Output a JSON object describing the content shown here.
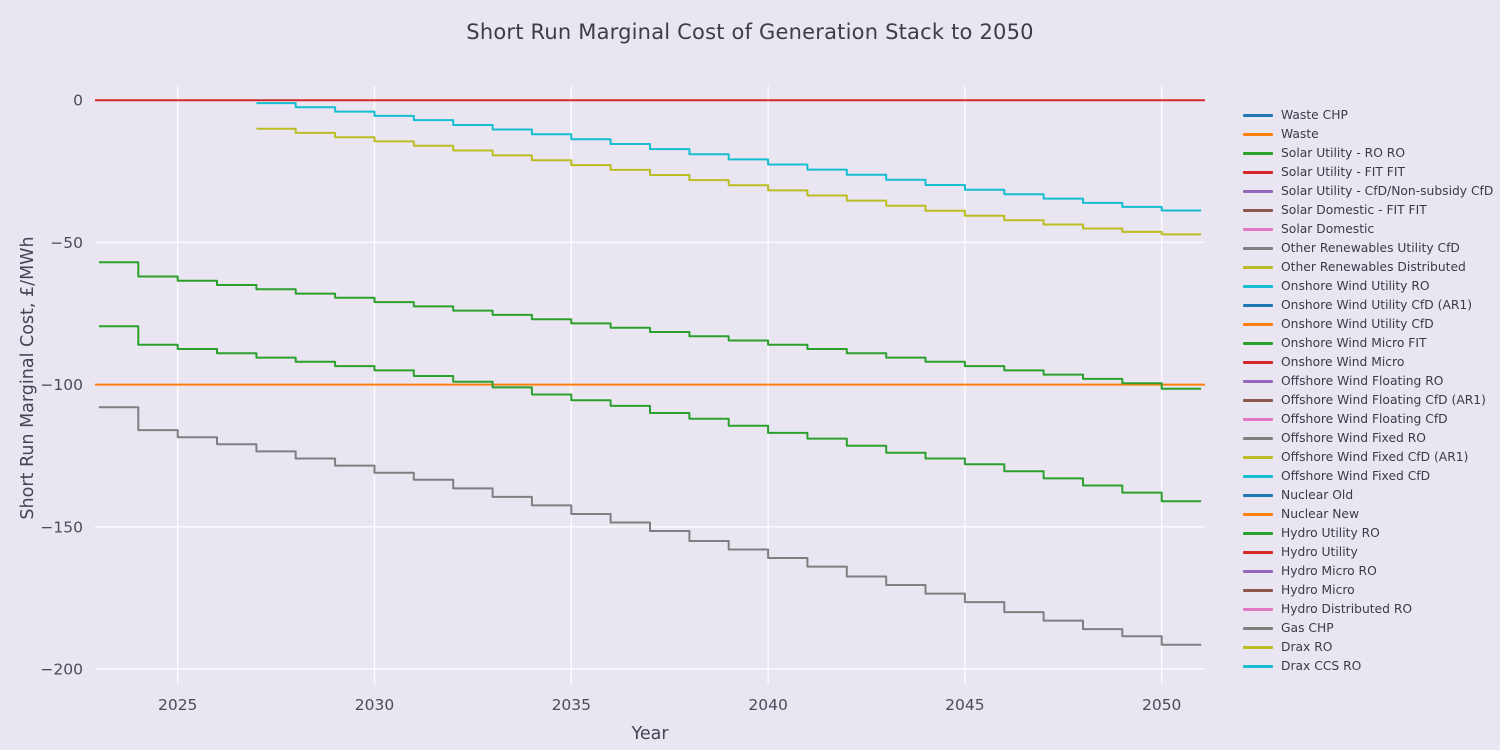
{
  "chart_data": {
    "type": "line",
    "title": "Short Run Marginal Cost of Generation Stack to 2050",
    "xlabel": "Year",
    "ylabel": "Short Run Marginal Cost, £/MWh",
    "xlim": [
      2022.9,
      2051.1
    ],
    "ylim": [
      -205.3,
      5
    ],
    "xticks": [
      2025,
      2030,
      2035,
      2040,
      2045,
      2050
    ],
    "yticks": [
      0,
      -50,
      -100,
      -150,
      -200
    ],
    "grid": true,
    "grid_color": "rgba(255,255,255,0.9)",
    "background": "#e9e6f2",
    "legend_position": "right",
    "series": [
      {
        "name": "Nuclear New",
        "color": "#ff7f0e",
        "shape": "linear",
        "x": [
          2022.9,
          2051.1
        ],
        "values": [
          -100,
          -100
        ]
      },
      {
        "name": "Hydro Utility",
        "color": "#d62728",
        "shape": "linear",
        "x": [
          2022.9,
          2051.1
        ],
        "values": [
          0,
          0
        ]
      },
      {
        "name": "Offshore Wind Fixed RO",
        "color": "#7f7f7f",
        "shape": "step",
        "x_start": 2023,
        "values": [
          -108,
          -116,
          -118.5,
          -121,
          -123.5,
          -126,
          -128.5,
          -131,
          -133.5,
          -136.5,
          -139.5,
          -142.5,
          -145.5,
          -148.5,
          -151.5,
          -155,
          -158,
          -161,
          -164,
          -167.5,
          -170.5,
          -173.5,
          -176.5,
          -180,
          -183,
          -186,
          -188.5,
          -191.5,
          -191.5
        ]
      },
      {
        "name": "Solar Utility - RO RO",
        "color": "#2ca02c",
        "shape": "step",
        "x_start": 2023,
        "values": [
          -57,
          -62,
          -63.5,
          -65,
          -66.5,
          -68,
          -69.5,
          -71,
          -72.5,
          -74,
          -75.5,
          -77,
          -78.5,
          -80,
          -81.5,
          -83,
          -84.5,
          -86,
          -87.5,
          -89,
          -90.5,
          -92,
          -93.5,
          -95,
          -96.5,
          -98,
          -99.5,
          -101.5,
          -101.5
        ]
      },
      {
        "name": "Hydro Utility RO",
        "color": "#2ca02c",
        "shape": "step",
        "x_start": 2023,
        "values": [
          -79.5,
          -86,
          -87.5,
          -89,
          -90.5,
          -92,
          -93.5,
          -95,
          -97,
          -99,
          -101,
          -103.5,
          -105.5,
          -107.5,
          -110,
          -112,
          -114.5,
          -117,
          -119,
          -121.5,
          -124,
          -126,
          -128,
          -130.5,
          -133,
          -135.5,
          -138,
          -141,
          -141
        ]
      },
      {
        "name": "Drax RO",
        "color": "#bcbd22",
        "shape": "step",
        "x_start": 2027,
        "values": [
          -10,
          -11.5,
          -13,
          -14.5,
          -16,
          -17.7,
          -19.4,
          -21.1,
          -22.8,
          -24.5,
          -26.3,
          -28.1,
          -29.9,
          -31.7,
          -33.5,
          -35.3,
          -37.1,
          -38.9,
          -40.6,
          -42.2,
          -43.7,
          -45.1,
          -46.3,
          -47.2,
          -47.2
        ]
      },
      {
        "name": "Drax CCS RO",
        "color": "#17becf",
        "shape": "step",
        "x_start": 2027,
        "values": [
          -1,
          -2.5,
          -4,
          -5.5,
          -7,
          -8.7,
          -10.3,
          -12,
          -13.7,
          -15.4,
          -17.2,
          -19,
          -20.8,
          -22.6,
          -24.4,
          -26.2,
          -28,
          -29.8,
          -31.5,
          -33.1,
          -34.6,
          -36.1,
          -37.5,
          -38.8,
          -38.8
        ]
      }
    ],
    "legend": [
      {
        "label": "Waste CHP",
        "color": "#1f77b4"
      },
      {
        "label": "Waste",
        "color": "#ff7f0e"
      },
      {
        "label": "Solar Utility - RO RO",
        "color": "#2ca02c"
      },
      {
        "label": "Solar Utility - FIT FIT",
        "color": "#d62728"
      },
      {
        "label": "Solar Utility - CfD/Non-subsidy CfD",
        "color": "#9467bd"
      },
      {
        "label": "Solar Domestic - FIT FIT",
        "color": "#8c564b"
      },
      {
        "label": "Solar Domestic",
        "color": "#e377c2"
      },
      {
        "label": "Other Renewables Utility CfD",
        "color": "#7f7f7f"
      },
      {
        "label": "Other Renewables Distributed",
        "color": "#bcbd22"
      },
      {
        "label": "Onshore Wind Utility RO",
        "color": "#17becf"
      },
      {
        "label": "Onshore Wind Utility CfD (AR1)",
        "color": "#1f77b4"
      },
      {
        "label": "Onshore Wind Utility CfD",
        "color": "#ff7f0e"
      },
      {
        "label": "Onshore Wind Micro FIT",
        "color": "#2ca02c"
      },
      {
        "label": "Onshore Wind Micro",
        "color": "#d62728"
      },
      {
        "label": "Offshore Wind Floating RO",
        "color": "#9467bd"
      },
      {
        "label": "Offshore Wind Floating CfD (AR1)",
        "color": "#8c564b"
      },
      {
        "label": "Offshore Wind Floating CfD",
        "color": "#e377c2"
      },
      {
        "label": "Offshore Wind Fixed RO",
        "color": "#7f7f7f"
      },
      {
        "label": "Offshore Wind Fixed CfD (AR1)",
        "color": "#bcbd22"
      },
      {
        "label": "Offshore Wind Fixed CfD",
        "color": "#17becf"
      },
      {
        "label": "Nuclear Old",
        "color": "#1f77b4"
      },
      {
        "label": "Nuclear New",
        "color": "#ff7f0e"
      },
      {
        "label": "Hydro Utility RO",
        "color": "#2ca02c"
      },
      {
        "label": "Hydro Utility",
        "color": "#d62728"
      },
      {
        "label": "Hydro Micro RO",
        "color": "#9467bd"
      },
      {
        "label": "Hydro Micro",
        "color": "#8c564b"
      },
      {
        "label": "Hydro Distributed RO",
        "color": "#e377c2"
      },
      {
        "label": "Gas CHP",
        "color": "#7f7f7f"
      },
      {
        "label": "Drax RO",
        "color": "#bcbd22"
      },
      {
        "label": "Drax CCS RO",
        "color": "#17becf"
      }
    ]
  }
}
